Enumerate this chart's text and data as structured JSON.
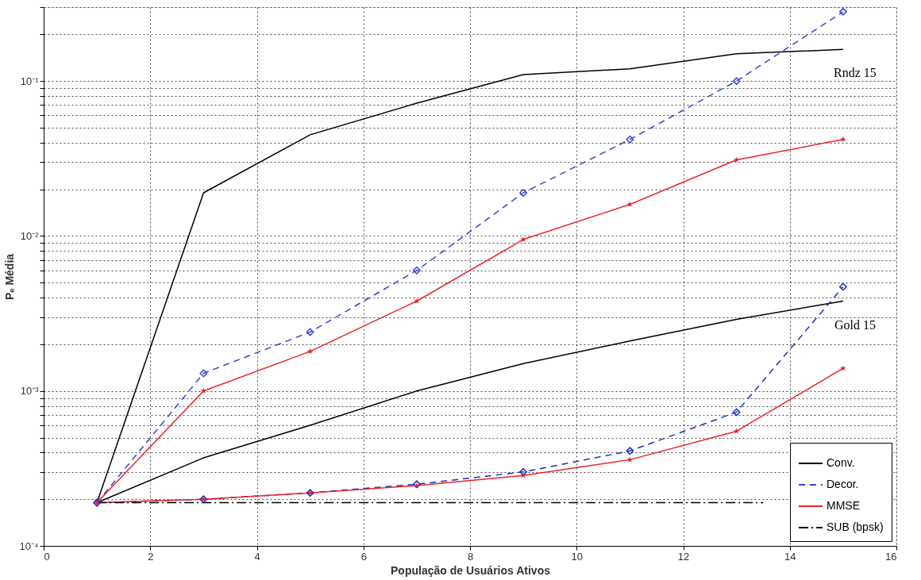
{
  "chart_data": {
    "type": "line",
    "xlabel": "População de Usuários Ativos",
    "ylabel": "Pₑ Média",
    "log": true,
    "grid": true,
    "legend": "bottom right",
    "xlim": [
      0,
      16
    ],
    "xticks": [
      0,
      2,
      4,
      6,
      8,
      10,
      12,
      14,
      16
    ],
    "ylim": [
      0.0001,
      0.3
    ],
    "yticks": [
      {
        "value": 0.0001,
        "label": "10⁻⁴"
      },
      {
        "value": 0.0002,
        "label": null
      },
      {
        "value": 0.0003,
        "label": null
      },
      {
        "value": 0.0004,
        "label": null
      },
      {
        "value": 0.0005,
        "label": null
      },
      {
        "value": 0.0006,
        "label": null
      },
      {
        "value": 0.0007,
        "label": null
      },
      {
        "value": 0.0008,
        "label": null
      },
      {
        "value": 0.0009,
        "label": null
      },
      {
        "value": 0.001,
        "label": "10⁻³"
      },
      {
        "value": 0.002,
        "label": null
      },
      {
        "value": 0.003,
        "label": null
      },
      {
        "value": 0.004,
        "label": null
      },
      {
        "value": 0.005,
        "label": null
      },
      {
        "value": 0.006,
        "label": null
      },
      {
        "value": 0.007,
        "label": null
      },
      {
        "value": 0.008,
        "label": null
      },
      {
        "value": 0.009,
        "label": null
      },
      {
        "value": 0.01,
        "label": "10⁻²"
      },
      {
        "value": 0.02,
        "label": null
      },
      {
        "value": 0.03,
        "label": null
      },
      {
        "value": 0.04,
        "label": null
      },
      {
        "value": 0.05,
        "label": null
      },
      {
        "value": 0.06,
        "label": null
      },
      {
        "value": 0.07,
        "label": null
      },
      {
        "value": 0.08,
        "label": null
      },
      {
        "value": 0.09,
        "label": null
      },
      {
        "value": 0.1,
        "label": "10⁻¹"
      },
      {
        "value": 0.2,
        "label": null
      },
      {
        "value": 0.3,
        "label": null
      }
    ],
    "x": [
      1,
      3,
      5,
      7,
      9,
      11,
      13,
      15
    ],
    "series": [
      {
        "name": "Conv.",
        "color": "#000000",
        "line_style": "solid",
        "marker": "none",
        "values": [
          0.00019,
          0.019,
          0.045,
          0.072,
          0.11,
          0.12,
          0.15,
          0.16
        ]
      },
      {
        "color": "#000000",
        "line_style": "solid",
        "marker": "none",
        "values": [
          0.00019,
          0.00037,
          0.0006,
          0.001,
          0.0015,
          0.0021,
          0.0029,
          0.0038
        ]
      },
      {
        "name": "Decor.",
        "color": "#3344dd",
        "line_style": "dashed",
        "marker": "diamond",
        "values": [
          0.00019,
          0.0013,
          0.0024,
          0.006,
          0.019,
          0.042,
          0.1,
          0.28
        ]
      },
      {
        "color": "#1a2fcc",
        "line_style": "dashed",
        "marker": "diamond",
        "values": [
          0.00019,
          0.0002,
          0.00022,
          0.00025,
          0.0003,
          0.00041,
          0.00073,
          0.0047
        ]
      },
      {
        "name": "MMSE",
        "color": "#ee2222",
        "line_style": "solid",
        "marker": "star",
        "values": [
          0.00019,
          0.001,
          0.0018,
          0.0038,
          0.0095,
          0.016,
          0.031,
          0.042
        ]
      },
      {
        "color": "#ee2222",
        "line_style": "solid",
        "marker": "star",
        "values": [
          0.00019,
          0.0002,
          0.00022,
          0.000245,
          0.000285,
          0.00036,
          0.00055,
          0.0014
        ]
      },
      {
        "name": "SUB (bpsk)",
        "color": "#000000",
        "line_style": "dashdot",
        "marker": "none",
        "x": [
          1,
          13.5
        ],
        "values": [
          0.00019,
          0.00019
        ]
      }
    ],
    "annotations": [
      {
        "text": "Rndz 15",
        "x": 15,
        "y": 0.16
      },
      {
        "text": "Gold 15",
        "x": 15,
        "y": 0.0038
      }
    ]
  }
}
